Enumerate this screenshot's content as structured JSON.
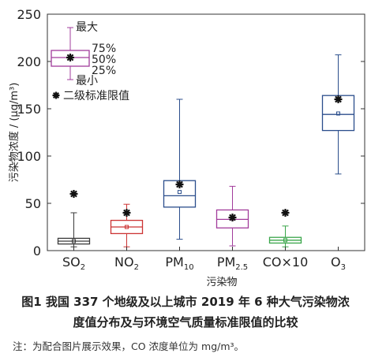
{
  "chart_data": {
    "type": "box",
    "ylabel": "污染物浓度 / (μg/m³)",
    "xlabel": "污染物",
    "ylim": [
      0,
      250
    ],
    "yticks": [
      0,
      50,
      100,
      150,
      200,
      250
    ],
    "categories": [
      {
        "label": "SO",
        "sub": "2",
        "suffix": "",
        "color": "#3a3a3a",
        "whisker_low": 4,
        "q1": 7,
        "median": 10,
        "q3": 13,
        "whisker_high": 40,
        "mean": 10,
        "standard": 60
      },
      {
        "label": "NO",
        "sub": "2",
        "suffix": "",
        "color": "#cc3333",
        "whisker_low": 4,
        "q1": 18,
        "median": 25,
        "q3": 32,
        "whisker_high": 49,
        "mean": 25,
        "standard": 40
      },
      {
        "label": "PM",
        "sub": "10",
        "suffix": "",
        "color": "#2b4e8c",
        "whisker_low": 12,
        "q1": 46,
        "median": 58,
        "q3": 74,
        "whisker_high": 160,
        "mean": 62,
        "standard": 70
      },
      {
        "label": "PM",
        "sub": "2.5",
        "suffix": "",
        "color": "#a23c9c",
        "whisker_low": 5,
        "q1": 24,
        "median": 33,
        "q3": 43,
        "whisker_high": 68,
        "mean": 34,
        "standard": 35
      },
      {
        "label": "CO",
        "sub": "",
        "suffix": "×10",
        "color": "#3aa64a",
        "whisker_low": 4,
        "q1": 8,
        "median": 11,
        "q3": 14,
        "whisker_high": 26,
        "mean": 11,
        "standard": 40
      },
      {
        "label": "O",
        "sub": "3",
        "suffix": "",
        "color": "#2b4e8c",
        "whisker_low": 81,
        "q1": 127,
        "median": 144,
        "q3": 164,
        "whisker_high": 207,
        "mean": 145,
        "standard": 160
      }
    ],
    "legend": {
      "color": "#a23c9c",
      "max_label": "最大",
      "q3_label": "75%",
      "median_label": "50%",
      "q1_label": "25%",
      "min_label": "最小",
      "standard_label": "二级标准限值"
    }
  },
  "caption": {
    "line1": "图1    我国 337 个地级及以上城市 2019 年 6 种大气污染物浓",
    "line2": "度值分布及与环境空气质量标准限值的比较",
    "note": "注：为配合图片展示效果，CO 浓度单位为 mg/m³。"
  }
}
